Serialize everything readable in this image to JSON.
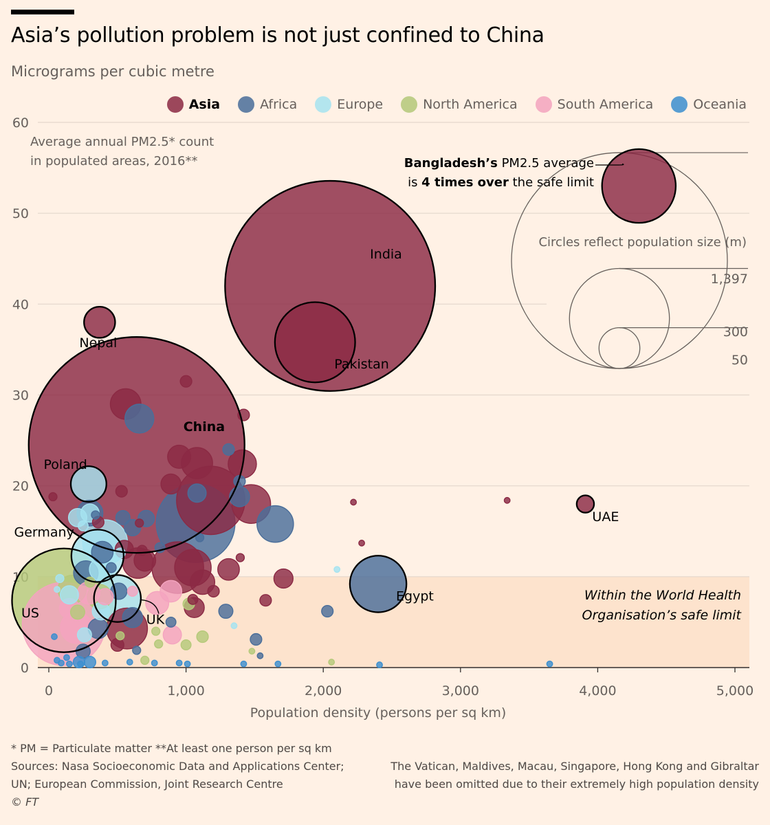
{
  "header": {
    "title": "Asia’s pollution problem is not just confined to China",
    "subtitle": "Micrograms per cubic metre"
  },
  "legend": [
    {
      "label": "Asia",
      "color": "#8b2a44",
      "bold": true
    },
    {
      "label": "Africa",
      "color": "#4a6e9a"
    },
    {
      "label": "Europe",
      "color": "#a6e3f0"
    },
    {
      "label": "North America",
      "color": "#b5c97a"
    },
    {
      "label": "South America",
      "color": "#f4a4bf"
    },
    {
      "label": "Oceania",
      "color": "#3c8fcf"
    }
  ],
  "annotations": {
    "pm_note_line1": "Average annual PM2.5* count",
    "pm_note_line2": "in populated areas, 2016**",
    "bangladesh_bold": "Bangladesh’s",
    "bangladesh_rest": " PM2.5 average",
    "bangladesh_line2_pre": "is ",
    "bangladesh_line2_bold": "4 times over",
    "bangladesh_line2_post": " the safe limit",
    "size_legend_title": "Circles reflect population size (m)",
    "size_legend_values": [
      "1,397",
      "300",
      "50"
    ],
    "who_line1": "Within the World Health",
    "who_line2": "Organisation’s safe limit"
  },
  "chart_data": {
    "type": "scatter",
    "title": "Asia’s pollution problem is not just confined to China",
    "xlabel": "Population density (persons per sq km)",
    "ylabel": "Micrograms per cubic metre",
    "xlim": [
      0,
      5000
    ],
    "ylim": [
      0,
      60
    ],
    "xticks": [
      0,
      1000,
      2000,
      3000,
      4000,
      5000
    ],
    "xtick_labels": [
      "0",
      "1,000",
      "2,000",
      "3,000",
      "4,000",
      "5,000"
    ],
    "yticks": [
      0,
      10,
      20,
      30,
      40,
      50,
      60
    ],
    "safe_limit": 10,
    "size_unit": "population (m)",
    "series": [
      {
        "name": "Asia",
        "color": "#8b2a44",
        "points": [
          {
            "x": 4300,
            "y": 53,
            "pop": 163,
            "label": "Bangladesh"
          },
          {
            "x": 2050,
            "y": 42,
            "pop": 1324,
            "label": "India"
          },
          {
            "x": 1940,
            "y": 35.8,
            "pop": 193,
            "label": "Pakistan"
          },
          {
            "x": 370,
            "y": 38,
            "pop": 29,
            "label": "Nepal"
          },
          {
            "x": 640,
            "y": 24.5,
            "pop": 1397,
            "label": "China",
            "bold": true
          },
          {
            "x": 3910,
            "y": 18,
            "pop": 9,
            "label": "UAE"
          },
          {
            "x": 1000,
            "y": 31.5,
            "pop": 4
          },
          {
            "x": 1420,
            "y": 27.8,
            "pop": 4
          },
          {
            "x": 560,
            "y": 29,
            "pop": 28
          },
          {
            "x": 1180,
            "y": 18.4,
            "pop": 140
          },
          {
            "x": 1475,
            "y": 18,
            "pop": 45
          },
          {
            "x": 1080,
            "y": 22.5,
            "pop": 29
          },
          {
            "x": 1410,
            "y": 22.4,
            "pop": 24
          },
          {
            "x": 950,
            "y": 23.2,
            "pop": 16
          },
          {
            "x": 890,
            "y": 20.2,
            "pop": 12
          },
          {
            "x": 940,
            "y": 11,
            "pop": 80
          },
          {
            "x": 1050,
            "y": 11,
            "pop": 40
          },
          {
            "x": 570,
            "y": 4.3,
            "pop": 50
          },
          {
            "x": 650,
            "y": 11.5,
            "pop": 28
          },
          {
            "x": 700,
            "y": 11.8,
            "pop": 14
          },
          {
            "x": 1120,
            "y": 9.4,
            "pop": 18
          },
          {
            "x": 1310,
            "y": 10.8,
            "pop": 14
          },
          {
            "x": 1710,
            "y": 9.8,
            "pop": 11
          },
          {
            "x": 1060,
            "y": 6.6,
            "pop": 12
          },
          {
            "x": 550,
            "y": 13,
            "pop": 10
          },
          {
            "x": 360,
            "y": 16,
            "pop": 4
          },
          {
            "x": 530,
            "y": 19.4,
            "pop": 4
          },
          {
            "x": 30,
            "y": 18.8,
            "pop": 2
          },
          {
            "x": 2220,
            "y": 18.2,
            "pop": 1
          },
          {
            "x": 3340,
            "y": 18.4,
            "pop": 1
          },
          {
            "x": 2280,
            "y": 13.7,
            "pop": 1
          },
          {
            "x": 1395,
            "y": 12.1,
            "pop": 2
          },
          {
            "x": 1580,
            "y": 7.4,
            "pop": 4
          },
          {
            "x": 1200,
            "y": 8.4,
            "pop": 4
          },
          {
            "x": 660,
            "y": 15.9,
            "pop": 2
          },
          {
            "x": 680,
            "y": 12.9,
            "pop": 3
          },
          {
            "x": 500,
            "y": 2.5,
            "pop": 5
          },
          {
            "x": 1050,
            "y": 7.5,
            "pop": 3
          }
        ]
      },
      {
        "name": "Africa",
        "color": "#4a6e9a",
        "points": [
          {
            "x": 2400,
            "y": 9.2,
            "pop": 96,
            "label": "Egypt"
          },
          {
            "x": 660,
            "y": 27.4,
            "pop": 25
          },
          {
            "x": 1070,
            "y": 15.9,
            "pop": 186
          },
          {
            "x": 1650,
            "y": 15.8,
            "pop": 40
          },
          {
            "x": 1080,
            "y": 19.2,
            "pop": 10
          },
          {
            "x": 1390,
            "y": 18.8,
            "pop": 12
          },
          {
            "x": 1310,
            "y": 24,
            "pop": 4
          },
          {
            "x": 1390,
            "y": 20.5,
            "pop": 4
          },
          {
            "x": 540,
            "y": 16.5,
            "pop": 6
          },
          {
            "x": 710,
            "y": 16.4,
            "pop": 8
          },
          {
            "x": 610,
            "y": 15.4,
            "pop": 8
          },
          {
            "x": 300,
            "y": 17,
            "pop": 20
          },
          {
            "x": 390,
            "y": 12.7,
            "pop": 14
          },
          {
            "x": 270,
            "y": 10.4,
            "pop": 18
          },
          {
            "x": 610,
            "y": 5.5,
            "pop": 12
          },
          {
            "x": 360,
            "y": 4.3,
            "pop": 12
          },
          {
            "x": 510,
            "y": 8.4,
            "pop": 8
          },
          {
            "x": 2030,
            "y": 6.2,
            "pop": 4
          },
          {
            "x": 1290,
            "y": 6.2,
            "pop": 6
          },
          {
            "x": 1510,
            "y": 3.1,
            "pop": 4
          },
          {
            "x": 810,
            "y": 13.2,
            "pop": 3
          },
          {
            "x": 1100,
            "y": 14.3,
            "pop": 2
          },
          {
            "x": 250,
            "y": 1.8,
            "pop": 6
          },
          {
            "x": 640,
            "y": 1.9,
            "pop": 2
          },
          {
            "x": 890,
            "y": 5,
            "pop": 3
          },
          {
            "x": 1540,
            "y": 1.3,
            "pop": 1
          },
          {
            "x": 340,
            "y": 16.8,
            "pop": 2
          },
          {
            "x": 455,
            "y": 11,
            "pop": 3
          }
        ]
      },
      {
        "name": "Europe",
        "color": "#a6e3f0",
        "points": [
          {
            "x": 290,
            "y": 20.2,
            "pop": 38,
            "label": "Poland"
          },
          {
            "x": 355,
            "y": 12.3,
            "pop": 82,
            "label": "Germany"
          },
          {
            "x": 500,
            "y": 7.6,
            "pop": 66,
            "label": "UK"
          },
          {
            "x": 410,
            "y": 13.8,
            "pop": 60
          },
          {
            "x": 210,
            "y": 16.5,
            "pop": 10
          },
          {
            "x": 300,
            "y": 17,
            "pop": 10
          },
          {
            "x": 380,
            "y": 10.8,
            "pop": 16
          },
          {
            "x": 150,
            "y": 8,
            "pop": 10
          },
          {
            "x": 380,
            "y": 6.2,
            "pop": 9
          },
          {
            "x": 260,
            "y": 3.6,
            "pop": 6
          },
          {
            "x": 520,
            "y": 12.6,
            "pop": 3
          },
          {
            "x": 2100,
            "y": 10.8,
            "pop": 1
          },
          {
            "x": 1350,
            "y": 4.6,
            "pop": 1
          },
          {
            "x": 250,
            "y": 15.6,
            "pop": 3
          },
          {
            "x": 80,
            "y": 9.8,
            "pop": 2
          },
          {
            "x": 60,
            "y": 8.6,
            "pop": 1
          }
        ]
      },
      {
        "name": "North America",
        "color": "#b5c97a",
        "points": [
          {
            "x": 110,
            "y": 7.4,
            "pop": 323,
            "label": "US"
          },
          {
            "x": 170,
            "y": 8.6,
            "pop": 24
          },
          {
            "x": 370,
            "y": 7.8,
            "pop": 18
          },
          {
            "x": 1020,
            "y": 7,
            "pop": 4
          },
          {
            "x": 1120,
            "y": 3.4,
            "pop": 4
          },
          {
            "x": 1000,
            "y": 2.5,
            "pop": 3
          },
          {
            "x": 800,
            "y": 2.6,
            "pop": 2
          },
          {
            "x": 780,
            "y": 4,
            "pop": 2
          },
          {
            "x": 520,
            "y": 3.5,
            "pop": 2
          },
          {
            "x": 1480,
            "y": 1.8,
            "pop": 1
          },
          {
            "x": 2060,
            "y": 0.6,
            "pop": 1
          },
          {
            "x": 210,
            "y": 6.1,
            "pop": 6
          },
          {
            "x": 300,
            "y": 9.4,
            "pop": 3
          },
          {
            "x": 700,
            "y": 0.8,
            "pop": 2
          }
        ]
      },
      {
        "name": "South America",
        "color": "#f4a4bf",
        "points": [
          {
            "x": 110,
            "y": 4.8,
            "pop": 208
          },
          {
            "x": 200,
            "y": 4.4,
            "pop": 30
          },
          {
            "x": 290,
            "y": 8.2,
            "pop": 15
          },
          {
            "x": 790,
            "y": 7.1,
            "pop": 16
          },
          {
            "x": 890,
            "y": 8.4,
            "pop": 14
          },
          {
            "x": 900,
            "y": 3.6,
            "pop": 10
          },
          {
            "x": 150,
            "y": 6.5,
            "pop": 12
          },
          {
            "x": 410,
            "y": 7.8,
            "pop": 8
          },
          {
            "x": 610,
            "y": 8.4,
            "pop": 3
          }
        ]
      },
      {
        "name": "Oceania",
        "color": "#3c8fcf",
        "points": [
          {
            "x": 3650,
            "y": 0.4,
            "pop": 1
          },
          {
            "x": 2410,
            "y": 0.3,
            "pop": 1
          },
          {
            "x": 1420,
            "y": 0.4,
            "pop": 1
          },
          {
            "x": 1670,
            "y": 0.4,
            "pop": 1
          },
          {
            "x": 1010,
            "y": 0.4,
            "pop": 1
          },
          {
            "x": 950,
            "y": 0.5,
            "pop": 1
          },
          {
            "x": 220,
            "y": 0.6,
            "pop": 4
          },
          {
            "x": 300,
            "y": 0.6,
            "pop": 4
          },
          {
            "x": 90,
            "y": 0.5,
            "pop": 1
          },
          {
            "x": 150,
            "y": 0.4,
            "pop": 1
          },
          {
            "x": 60,
            "y": 0.8,
            "pop": 1
          },
          {
            "x": 410,
            "y": 0.5,
            "pop": 1
          },
          {
            "x": 590,
            "y": 0.6,
            "pop": 1
          },
          {
            "x": 770,
            "y": 0.5,
            "pop": 1
          },
          {
            "x": 40,
            "y": 3.4,
            "pop": 1
          },
          {
            "x": 230,
            "y": 0.4,
            "pop": 1
          },
          {
            "x": 130,
            "y": 1.1,
            "pop": 1
          }
        ]
      }
    ]
  },
  "footer": {
    "note1": "* PM = Particulate matter   **At least one person per sq km",
    "sources1": "Sources: Nasa Socioeconomic Data and Applications Center;",
    "sources2": "UN; European Commission, Joint Research Centre",
    "copyright": "© FT",
    "omitted1": "The Vatican, Maldives, Macau, Singapore, Hong Kong and Gibraltar",
    "omitted2": "have been omitted due to their extremely high population density"
  }
}
